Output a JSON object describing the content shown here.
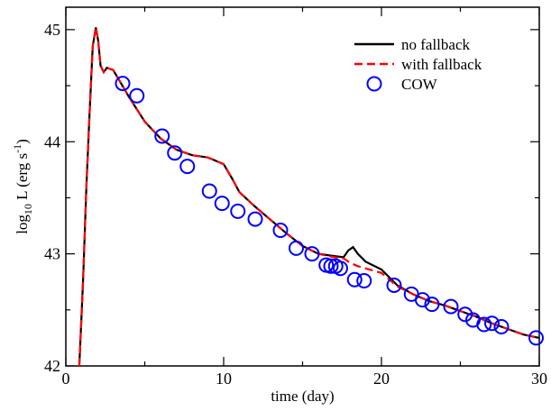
{
  "chart_data": {
    "type": "line",
    "title": "",
    "xlabel": "time (day)",
    "ylabel": {
      "prefix": "log",
      "sub": "10",
      "mid": " L (erg s",
      "sup": "-1",
      "suffix": ")"
    },
    "xlim": [
      0,
      30
    ],
    "ylim": [
      42,
      45.2
    ],
    "xticks": [
      0,
      10,
      20,
      30
    ],
    "yticks": [
      42,
      43,
      44,
      45
    ],
    "grid": false,
    "legend_position": "top-right",
    "series": [
      {
        "name": "no fallback",
        "style": "solid",
        "color": "#000000",
        "points": [
          [
            0.85,
            42.0
          ],
          [
            0.95,
            42.3
          ],
          [
            1.1,
            42.8
          ],
          [
            1.3,
            43.6
          ],
          [
            1.5,
            44.25
          ],
          [
            1.7,
            44.85
          ],
          [
            1.9,
            45.02
          ],
          [
            2.05,
            44.9
          ],
          [
            2.2,
            44.68
          ],
          [
            2.4,
            44.62
          ],
          [
            2.6,
            44.66
          ],
          [
            3.0,
            44.64
          ],
          [
            3.5,
            44.52
          ],
          [
            4.0,
            44.4
          ],
          [
            5.0,
            44.18
          ],
          [
            6.0,
            44.03
          ],
          [
            7.0,
            43.93
          ],
          [
            8.0,
            43.88
          ],
          [
            9.0,
            43.86
          ],
          [
            10.0,
            43.8
          ],
          [
            10.5,
            43.68
          ],
          [
            11.0,
            43.55
          ],
          [
            12.0,
            43.42
          ],
          [
            13.0,
            43.3
          ],
          [
            14.0,
            43.18
          ],
          [
            15.0,
            43.07
          ],
          [
            16.0,
            43.0
          ],
          [
            17.0,
            42.98
          ],
          [
            17.6,
            42.97
          ],
          [
            17.9,
            43.03
          ],
          [
            18.2,
            43.06
          ],
          [
            18.5,
            43.0
          ],
          [
            19.0,
            42.93
          ],
          [
            20.0,
            42.86
          ],
          [
            21.0,
            42.72
          ],
          [
            22.0,
            42.64
          ],
          [
            23.0,
            42.58
          ],
          [
            24.0,
            42.54
          ],
          [
            25.0,
            42.49
          ],
          [
            26.0,
            42.44
          ],
          [
            27.0,
            42.38
          ],
          [
            28.0,
            42.33
          ],
          [
            29.0,
            42.28
          ],
          [
            30.0,
            42.25
          ]
        ]
      },
      {
        "name": "with fallback",
        "style": "dashed",
        "color": "#ff0000",
        "points": [
          [
            0.85,
            42.0
          ],
          [
            0.95,
            42.3
          ],
          [
            1.1,
            42.8
          ],
          [
            1.3,
            43.6
          ],
          [
            1.5,
            44.25
          ],
          [
            1.7,
            44.85
          ],
          [
            1.9,
            45.02
          ],
          [
            2.05,
            44.9
          ],
          [
            2.2,
            44.68
          ],
          [
            2.4,
            44.62
          ],
          [
            2.6,
            44.66
          ],
          [
            3.0,
            44.64
          ],
          [
            3.5,
            44.52
          ],
          [
            4.0,
            44.4
          ],
          [
            5.0,
            44.18
          ],
          [
            6.0,
            44.03
          ],
          [
            7.0,
            43.93
          ],
          [
            8.0,
            43.88
          ],
          [
            9.0,
            43.86
          ],
          [
            10.0,
            43.8
          ],
          [
            10.5,
            43.68
          ],
          [
            11.0,
            43.55
          ],
          [
            12.0,
            43.42
          ],
          [
            13.0,
            43.3
          ],
          [
            14.0,
            43.18
          ],
          [
            15.0,
            43.07
          ],
          [
            16.0,
            43.0
          ],
          [
            17.0,
            42.97
          ],
          [
            17.6,
            42.96
          ],
          [
            18.0,
            42.92
          ],
          [
            18.5,
            42.89
          ],
          [
            19.0,
            42.87
          ],
          [
            20.0,
            42.83
          ],
          [
            21.0,
            42.71
          ],
          [
            22.0,
            42.64
          ],
          [
            23.0,
            42.58
          ],
          [
            24.0,
            42.54
          ],
          [
            25.0,
            42.49
          ],
          [
            26.0,
            42.44
          ],
          [
            27.0,
            42.38
          ],
          [
            28.0,
            42.33
          ],
          [
            29.0,
            42.28
          ],
          [
            30.0,
            42.25
          ]
        ]
      },
      {
        "name": "COW",
        "style": "markers",
        "color": "#0000ff",
        "points": [
          [
            3.6,
            44.52
          ],
          [
            4.5,
            44.41
          ],
          [
            6.1,
            44.05
          ],
          [
            6.9,
            43.9
          ],
          [
            7.7,
            43.78
          ],
          [
            9.1,
            43.56
          ],
          [
            9.9,
            43.45
          ],
          [
            10.9,
            43.38
          ],
          [
            12.0,
            43.31
          ],
          [
            13.6,
            43.21
          ],
          [
            14.6,
            43.05
          ],
          [
            15.6,
            43.0
          ],
          [
            16.5,
            42.9
          ],
          [
            16.8,
            42.89
          ],
          [
            17.1,
            42.89
          ],
          [
            17.4,
            42.87
          ],
          [
            18.3,
            42.77
          ],
          [
            18.9,
            42.76
          ],
          [
            20.8,
            42.72
          ],
          [
            21.9,
            42.64
          ],
          [
            22.6,
            42.59
          ],
          [
            23.2,
            42.55
          ],
          [
            24.4,
            42.53
          ],
          [
            25.3,
            42.46
          ],
          [
            25.8,
            42.41
          ],
          [
            26.5,
            42.37
          ],
          [
            27.0,
            42.38
          ],
          [
            27.6,
            42.35
          ],
          [
            29.8,
            42.25
          ]
        ]
      }
    ]
  }
}
